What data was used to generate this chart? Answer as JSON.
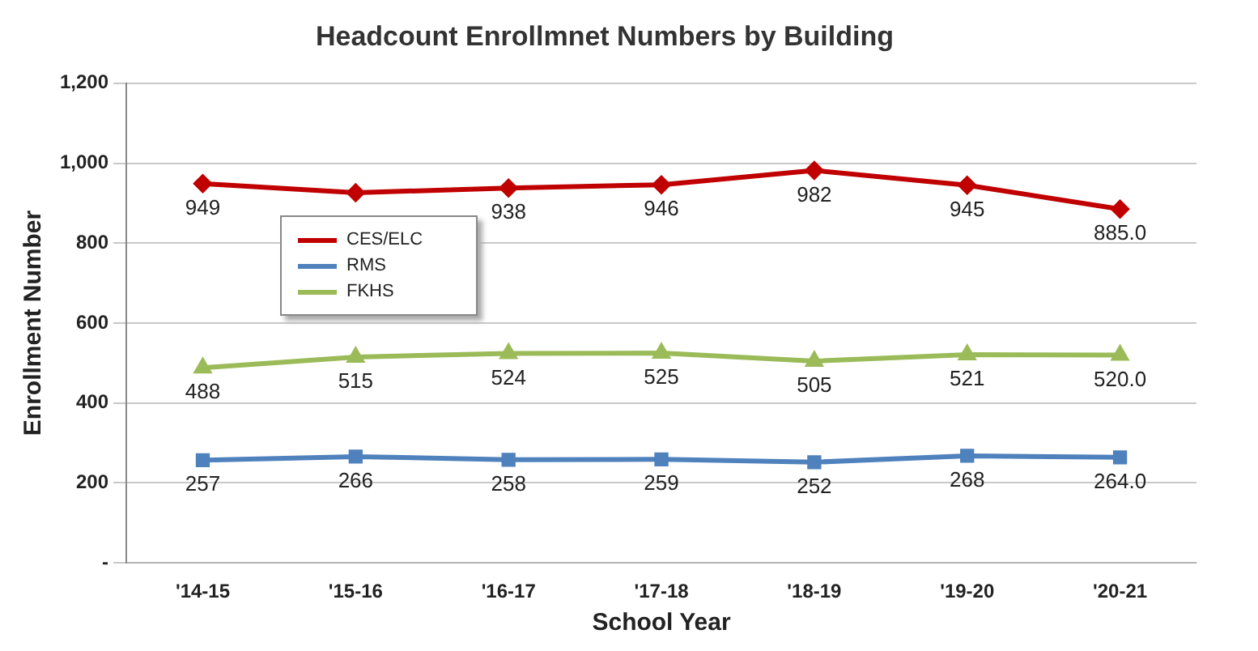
{
  "chart_data": {
    "type": "line",
    "title": "Headcount Enrollmnet Numbers by Building",
    "xlabel": "School Year",
    "ylabel": "Enrollment Number",
    "categories": [
      "'14-15",
      "'15-16",
      "'16-17",
      "'17-18",
      "'18-19",
      "'19-20",
      "'20-21"
    ],
    "series": [
      {
        "name": "CES/ELC",
        "color": "#c00000",
        "marker": "diamond",
        "values": [
          949,
          926,
          938,
          946,
          982,
          945,
          885
        ],
        "value_labels": [
          "949",
          null,
          "938",
          "946",
          "982",
          "945",
          "885.0"
        ]
      },
      {
        "name": "RMS",
        "color": "#4f81bd",
        "marker": "square",
        "values": [
          257,
          266,
          258,
          259,
          252,
          268,
          264
        ],
        "value_labels": [
          "257",
          "266",
          "258",
          "259",
          "252",
          "268",
          "264.0"
        ]
      },
      {
        "name": "FKHS",
        "color": "#9bbb59",
        "marker": "triangle",
        "values": [
          488,
          515,
          524,
          525,
          505,
          521,
          520
        ],
        "value_labels": [
          "488",
          "515",
          "524",
          "525",
          "505",
          "521",
          "520.0"
        ]
      }
    ],
    "ylim": [
      0,
      1200
    ],
    "yticks": [
      {
        "value": 0,
        "label": "-"
      },
      200,
      400,
      600,
      800,
      {
        "value": 1000,
        "label": "1,000"
      },
      {
        "value": 1200,
        "label": "1,200"
      }
    ],
    "grid": "y",
    "legend": "top left"
  }
}
